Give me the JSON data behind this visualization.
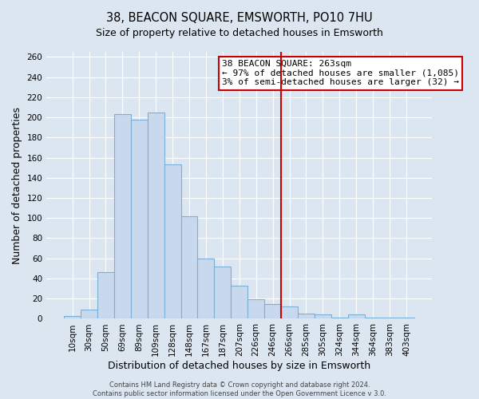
{
  "title": "38, BEACON SQUARE, EMSWORTH, PO10 7HU",
  "subtitle": "Size of property relative to detached houses in Emsworth",
  "xlabel": "Distribution of detached houses by size in Emsworth",
  "ylabel": "Number of detached properties",
  "bar_labels": [
    "10sqm",
    "30sqm",
    "50sqm",
    "69sqm",
    "89sqm",
    "109sqm",
    "128sqm",
    "148sqm",
    "167sqm",
    "187sqm",
    "207sqm",
    "226sqm",
    "246sqm",
    "266sqm",
    "285sqm",
    "305sqm",
    "324sqm",
    "344sqm",
    "364sqm",
    "383sqm",
    "403sqm"
  ],
  "bar_values": [
    3,
    9,
    46,
    203,
    198,
    205,
    153,
    102,
    60,
    52,
    33,
    19,
    15,
    12,
    5,
    4,
    1,
    4,
    1,
    1,
    1
  ],
  "bar_color": "#c9d9ed",
  "bar_edge_color": "#7bafd4",
  "vline_x_index": 13,
  "vline_color": "#cc0000",
  "annotation_title": "38 BEACON SQUARE: 263sqm",
  "annotation_line1": "← 97% of detached houses are smaller (1,085)",
  "annotation_line2": "3% of semi-detached houses are larger (32) →",
  "annotation_box_color": "#ffffff",
  "annotation_box_edge": "#cc0000",
  "ylim": [
    0,
    265
  ],
  "yticks": [
    0,
    20,
    40,
    60,
    80,
    100,
    120,
    140,
    160,
    180,
    200,
    220,
    240,
    260
  ],
  "footer_line1": "Contains HM Land Registry data © Crown copyright and database right 2024.",
  "footer_line2": "Contains public sector information licensed under the Open Government Licence v 3.0.",
  "bg_color": "#dce6f1",
  "plot_bg_color": "#dce6f1",
  "title_fontsize": 10.5,
  "subtitle_fontsize": 9,
  "axis_label_fontsize": 9,
  "tick_fontsize": 7.5,
  "annot_fontsize": 8
}
